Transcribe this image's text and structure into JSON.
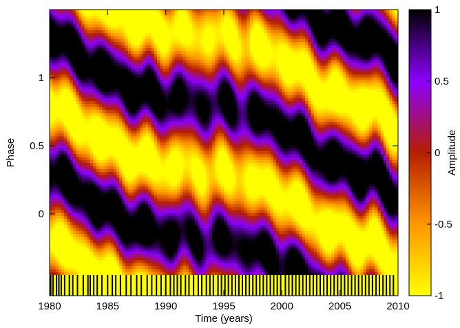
{
  "chart_data": {
    "type": "heatmap",
    "xlabel": "Time (years)",
    "ylabel": "Phase",
    "colorbar_label": "Amplitude",
    "xlim": [
      1980,
      2010
    ],
    "ylim": [
      -0.45,
      1.5
    ],
    "x_ticks": [
      {
        "value": 1980,
        "label": "1980"
      },
      {
        "value": 1985,
        "label": "1985"
      },
      {
        "value": 1990,
        "label": "1990"
      },
      {
        "value": 1995,
        "label": "1995"
      },
      {
        "value": 2000,
        "label": "2000"
      },
      {
        "value": 2005,
        "label": "2005"
      },
      {
        "value": 2010,
        "label": "2010"
      }
    ],
    "y_ticks": [
      {
        "value": 0,
        "label": "0"
      },
      {
        "value": 0.5,
        "label": "0.5"
      },
      {
        "value": 1,
        "label": "1"
      }
    ],
    "colorbar_range": [
      -1,
      1
    ],
    "colorbar_ticks": [
      {
        "value": 1,
        "label": "1"
      },
      {
        "value": 0.5,
        "label": "0.5"
      },
      {
        "value": 0,
        "label": "0"
      },
      {
        "value": -0.5,
        "label": "-0.5"
      },
      {
        "value": -1,
        "label": "-1"
      }
    ],
    "colormap": [
      "#000000",
      "#8c00ff",
      "#b41e00",
      "#ff9600",
      "#ffff00"
    ],
    "observation_years": [
      1980.1,
      1980.3,
      1980.6,
      1980.8,
      1981.0,
      1981.3,
      1981.7,
      1982.0,
      1982.4,
      1982.9,
      1983.3,
      1983.5,
      1983.8,
      1984.1,
      1984.5,
      1985.0,
      1985.4,
      1985.7,
      1986.1,
      1986.6,
      1987.0,
      1987.5,
      1987.9,
      1988.4,
      1988.8,
      1989.2,
      1989.6,
      1990.0,
      1990.4,
      1990.7,
      1991.0,
      1991.3,
      1991.7,
      1992.0,
      1992.4,
      1992.8,
      1993.1,
      1993.5,
      1993.8,
      1994.1,
      1994.5,
      1994.8,
      1995.1,
      1995.4,
      1995.7,
      1996.0,
      1996.3,
      1996.6,
      1996.9,
      1997.2,
      1997.5,
      1997.8,
      1998.1,
      1998.4,
      1998.7,
      1999.0,
      1999.3,
      1999.6,
      1999.9,
      2000.3,
      2000.6,
      2000.9,
      2001.2,
      2001.5,
      2001.8,
      2002.1,
      2002.4,
      2002.7,
      2003.0,
      2003.3,
      2003.6,
      2003.9,
      2004.2,
      2004.5,
      2004.8,
      2005.1,
      2005.4,
      2005.7,
      2006.0,
      2006.3,
      2006.6,
      2006.9,
      2007.2,
      2007.5,
      2007.8,
      2008.1,
      2008.4,
      2008.7,
      2009.0,
      2009.3,
      2009.6
    ],
    "amplitude_ridges": [
      {
        "name": "dark-ridge",
        "points": [
          [
            1980,
            1.3
          ],
          [
            1984,
            1.05
          ],
          [
            1988,
            0.85
          ],
          [
            1992,
            0.75
          ],
          [
            1996,
            0.72
          ],
          [
            2000,
            0.6
          ],
          [
            2004,
            0.35
          ],
          [
            2008,
            0.25
          ],
          [
            2010,
            0.1
          ]
        ]
      },
      {
        "name": "light-ridge",
        "points": [
          [
            1980,
            0.9
          ],
          [
            1984,
            0.6
          ],
          [
            1988,
            0.45
          ],
          [
            1992,
            0.5
          ],
          [
            1996,
            0.45
          ],
          [
            2000,
            0.25
          ],
          [
            2004,
            -0.05
          ],
          [
            2008,
            -0.2
          ],
          [
            2010,
            -0.3
          ]
        ]
      }
    ]
  }
}
